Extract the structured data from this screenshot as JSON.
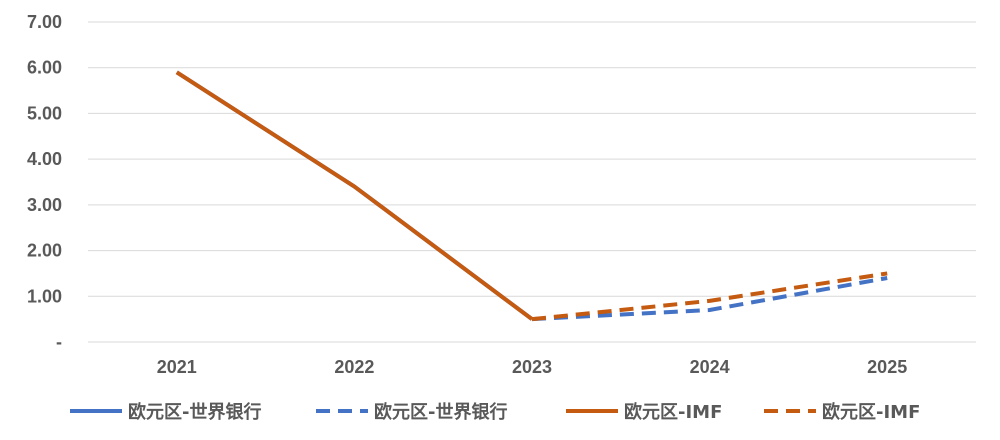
{
  "chart_data": {
    "type": "line",
    "categories": [
      "2021",
      "2022",
      "2023",
      "2024",
      "2025"
    ],
    "ylim": [
      0,
      7
    ],
    "yticks": [
      "-",
      "1.00",
      "2.00",
      "3.00",
      "4.00",
      "5.00",
      "6.00",
      "7.00"
    ],
    "grid": true,
    "legend_position": "bottom",
    "series": [
      {
        "name": "欧元区-世界银行",
        "color": "#4472c4",
        "dash": "solid",
        "values": [
          5.9,
          3.4,
          0.5,
          null,
          null
        ]
      },
      {
        "name": "欧元区-世界银行",
        "color": "#4472c4",
        "dash": "dashed",
        "values": [
          null,
          null,
          0.5,
          0.7,
          1.4
        ]
      },
      {
        "name": "欧元区-IMF",
        "color": "#c55a11",
        "dash": "solid",
        "values": [
          5.9,
          3.4,
          0.5,
          null,
          null
        ]
      },
      {
        "name": "欧元区-IMF",
        "color": "#c55a11",
        "dash": "dashed",
        "values": [
          null,
          null,
          0.5,
          0.9,
          1.5
        ]
      }
    ]
  }
}
